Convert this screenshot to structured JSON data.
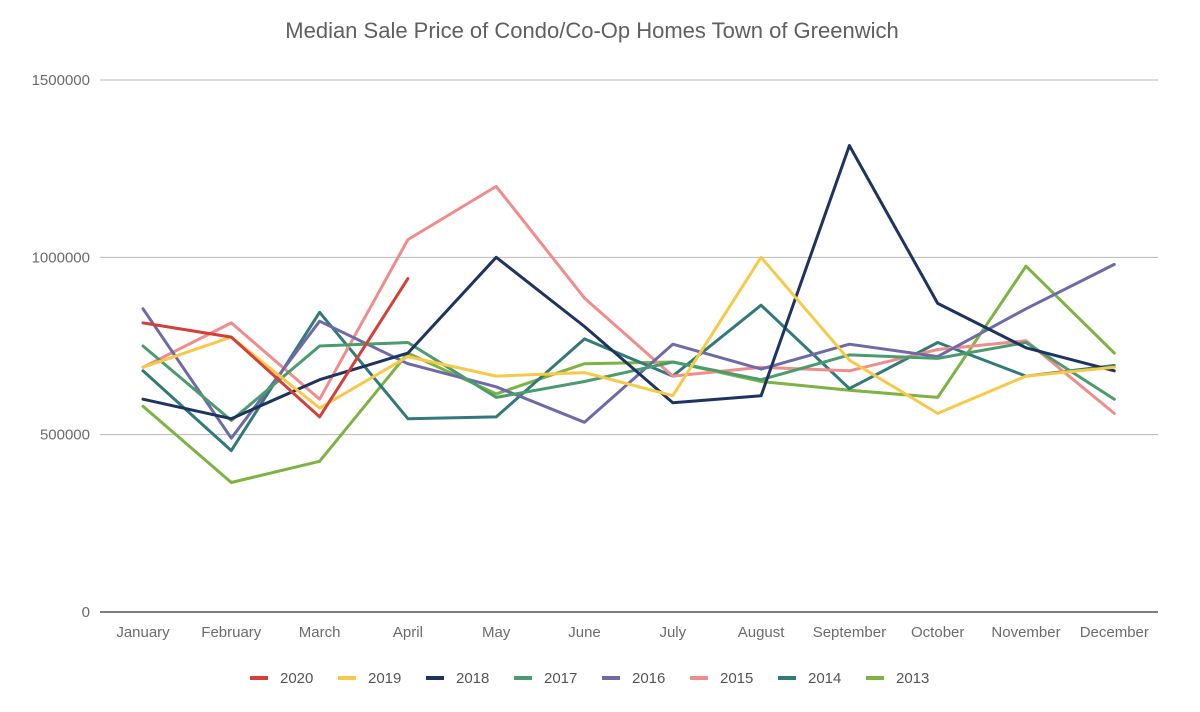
{
  "chart_data": {
    "type": "line",
    "title": "Median Sale Price of Condo/Co-Op Homes Town of Greenwich",
    "xlabel": "",
    "ylabel": "",
    "categories": [
      "January",
      "February",
      "March",
      "April",
      "May",
      "June",
      "July",
      "August",
      "September",
      "October",
      "November",
      "December"
    ],
    "ylim": [
      0,
      1500000
    ],
    "yticks": [
      0,
      500000,
      1000000,
      1500000
    ],
    "grid": true,
    "legend_position": "bottom",
    "series": [
      {
        "name": "2020",
        "color": "#d43f3a",
        "values": [
          815000,
          775000,
          550000,
          940000,
          null,
          null,
          null,
          null,
          null,
          null,
          null,
          null
        ]
      },
      {
        "name": "2019",
        "color": "#f7c948",
        "values": [
          690000,
          775000,
          575000,
          720000,
          665000,
          675000,
          610000,
          1000000,
          710000,
          560000,
          665000,
          690000
        ]
      },
      {
        "name": "2018",
        "color": "#1d3461",
        "values": [
          600000,
          545000,
          655000,
          730000,
          1000000,
          805000,
          590000,
          610000,
          1315000,
          870000,
          745000,
          680000
        ]
      },
      {
        "name": "2017",
        "color": "#4a9b6e",
        "values": [
          750000,
          540000,
          750000,
          760000,
          605000,
          650000,
          705000,
          655000,
          725000,
          715000,
          760000,
          600000
        ]
      },
      {
        "name": "2016",
        "color": "#6e6aa8",
        "values": [
          855000,
          490000,
          820000,
          700000,
          635000,
          535000,
          755000,
          685000,
          755000,
          720000,
          855000,
          980000
        ]
      },
      {
        "name": "2015",
        "color": "#ef8c8c",
        "values": [
          690000,
          815000,
          600000,
          1050000,
          1200000,
          885000,
          665000,
          690000,
          680000,
          740000,
          765000,
          560000
        ]
      },
      {
        "name": "2014",
        "color": "#327a7a",
        "values": [
          680000,
          455000,
          845000,
          545000,
          550000,
          770000,
          665000,
          865000,
          630000,
          760000,
          665000,
          695000
        ]
      },
      {
        "name": "2013",
        "color": "#7cb342",
        "values": [
          580000,
          365000,
          425000,
          730000,
          615000,
          700000,
          705000,
          650000,
          625000,
          605000,
          975000,
          730000
        ]
      }
    ]
  }
}
